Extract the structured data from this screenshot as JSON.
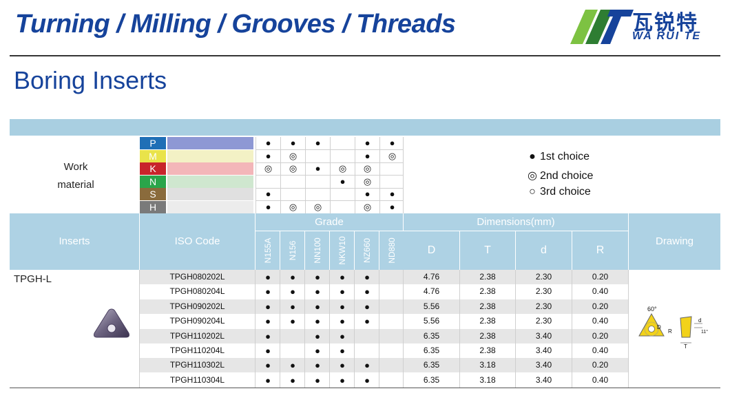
{
  "banner": {
    "title": "Turning / Milling / Grooves / Threads",
    "logo_cn": "瓦锐特",
    "logo_en": "WA RUI TE",
    "logo_colors": [
      "#7dc242",
      "#2e7d32",
      "#16439b"
    ]
  },
  "section_title": "Boring Inserts",
  "work_material": {
    "label_line1": "Work",
    "label_line2": "material",
    "rows": [
      {
        "code": "P",
        "code_color": "#1f6fb6",
        "swatch_color": "#8e98d4",
        "marks": [
          "●",
          "●",
          "●",
          "",
          "●",
          "●"
        ]
      },
      {
        "code": "M",
        "code_color": "#e9e34a",
        "swatch_color": "#f3f1c5",
        "marks": [
          "●",
          "◎",
          "",
          "",
          "●",
          "◎"
        ]
      },
      {
        "code": "K",
        "code_color": "#c8242b",
        "swatch_color": "#f3b6b9",
        "marks": [
          "◎",
          "◎",
          "●",
          "◎",
          "◎",
          ""
        ]
      },
      {
        "code": "N",
        "code_color": "#2aa54a",
        "swatch_color": "#cfe7cf",
        "marks": [
          "",
          "",
          "",
          "●",
          "◎",
          ""
        ]
      },
      {
        "code": "S",
        "code_color": "#8a6b3c",
        "swatch_color": "#e0e0e0",
        "marks": [
          "●",
          "",
          "",
          "",
          "●",
          "●"
        ]
      },
      {
        "code": "H",
        "code_color": "#7a7a7a",
        "swatch_color": "#ececec",
        "marks": [
          "●",
          "◎",
          "◎",
          "",
          "◎",
          "●"
        ]
      }
    ]
  },
  "legend": [
    {
      "symbol": "●",
      "label": "1st choice"
    },
    {
      "symbol": "◎",
      "label": "2nd choice"
    },
    {
      "symbol": "○",
      "label": "3rd choice"
    }
  ],
  "table": {
    "headers": {
      "inserts": "Inserts",
      "iso_code": "ISO Code",
      "grade": "Grade",
      "dimensions": "Dimensions(mm)",
      "drawing": "Drawing"
    },
    "grades": [
      "N155A",
      "N156",
      "NN100",
      "NKW10",
      "NZ660",
      "ND880"
    ],
    "dim_cols": [
      "D",
      "T",
      "d",
      "R"
    ],
    "insert_name": "TPGH-L",
    "rows": [
      {
        "iso": "TPGH080202L",
        "marks": [
          "●",
          "●",
          "●",
          "●",
          "●",
          ""
        ],
        "D": "4.76",
        "T": "2.38",
        "d": "2.30",
        "R": "0.20"
      },
      {
        "iso": "TPGH080204L",
        "marks": [
          "●",
          "●",
          "●",
          "●",
          "●",
          ""
        ],
        "D": "4.76",
        "T": "2.38",
        "d": "2.30",
        "R": "0.40"
      },
      {
        "iso": "TPGH090202L",
        "marks": [
          "●",
          "●",
          "●",
          "●",
          "●",
          ""
        ],
        "D": "5.56",
        "T": "2.38",
        "d": "2.30",
        "R": "0.20"
      },
      {
        "iso": "TPGH090204L",
        "marks": [
          "●",
          "●",
          "●",
          "●",
          "●",
          ""
        ],
        "D": "5.56",
        "T": "2.38",
        "d": "2.30",
        "R": "0.40"
      },
      {
        "iso": "TPGH110202L",
        "marks": [
          "●",
          "",
          "●",
          "●",
          "",
          ""
        ],
        "D": "6.35",
        "T": "2.38",
        "d": "3.40",
        "R": "0.20"
      },
      {
        "iso": "TPGH110204L",
        "marks": [
          "●",
          "",
          "●",
          "●",
          "",
          ""
        ],
        "D": "6.35",
        "T": "2.38",
        "d": "3.40",
        "R": "0.40"
      },
      {
        "iso": "TPGH110302L",
        "marks": [
          "●",
          "●",
          "●",
          "●",
          "●",
          ""
        ],
        "D": "6.35",
        "T": "3.18",
        "d": "3.40",
        "R": "0.20"
      },
      {
        "iso": "TPGH110304L",
        "marks": [
          "●",
          "●",
          "●",
          "●",
          "●",
          ""
        ],
        "D": "6.35",
        "T": "3.18",
        "d": "3.40",
        "R": "0.40"
      }
    ],
    "drawing_labels": {
      "angle": "60°",
      "D": "D",
      "R": "R",
      "d": "d",
      "T": "T",
      "clearance": "11°"
    }
  }
}
